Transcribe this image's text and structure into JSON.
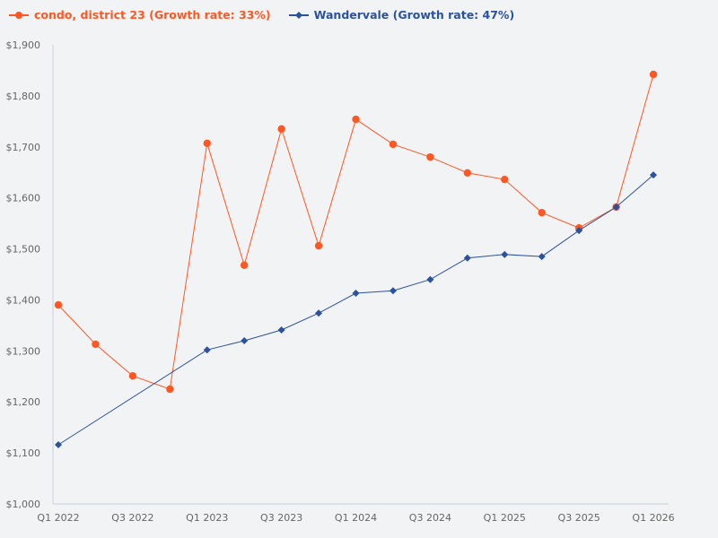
{
  "chart_data": {
    "type": "line",
    "title": "",
    "xlabel": "",
    "ylabel": "",
    "ylim": [
      1000,
      1900
    ],
    "yticks": [
      "$1,000",
      "$1,100",
      "$1,200",
      "$1,300",
      "$1,400",
      "$1,500",
      "$1,600",
      "$1,700",
      "$1,800",
      "$1,900"
    ],
    "ytick_values": [
      1000,
      1100,
      1200,
      1300,
      1400,
      1500,
      1600,
      1700,
      1800,
      1900
    ],
    "categories": [
      "Q1 2022",
      "Q2 2022",
      "Q3 2022",
      "Q4 2022",
      "Q1 2023",
      "Q2 2023",
      "Q3 2023",
      "Q4 2023",
      "Q1 2024",
      "Q2 2024",
      "Q3 2024",
      "Q4 2024",
      "Q1 2025",
      "Q2 2025",
      "Q3 2025",
      "Q4 2025",
      "Q1 2026"
    ],
    "xtick_labels": [
      "Q1 2022",
      "",
      "Q3 2022",
      "",
      "Q1 2023",
      "",
      "Q3 2023",
      "",
      "Q1 2024",
      "",
      "Q3 2024",
      "",
      "Q1 2025",
      "",
      "Q3 2025",
      "",
      "Q1 2026"
    ],
    "grid": false,
    "legend_position": "top-left",
    "series": [
      {
        "name": "condo, district 23 (Growth rate: 33%)",
        "color": "#ff5722",
        "marker": "circle",
        "values": [
          1390,
          1313,
          1251,
          1225,
          1707,
          1468,
          1735,
          1506,
          1754,
          1705,
          1680,
          1649,
          1636,
          1571,
          1541,
          1582,
          1842
        ]
      },
      {
        "name": "Wandervale (Growth rate: 47%)",
        "color": "#2a52a0",
        "marker": "diamond",
        "values": [
          1116,
          null,
          null,
          null,
          1302,
          1320,
          1341,
          1374,
          1413,
          1418,
          1440,
          1482,
          1489,
          1485,
          1536,
          1582,
          1645
        ]
      }
    ]
  }
}
